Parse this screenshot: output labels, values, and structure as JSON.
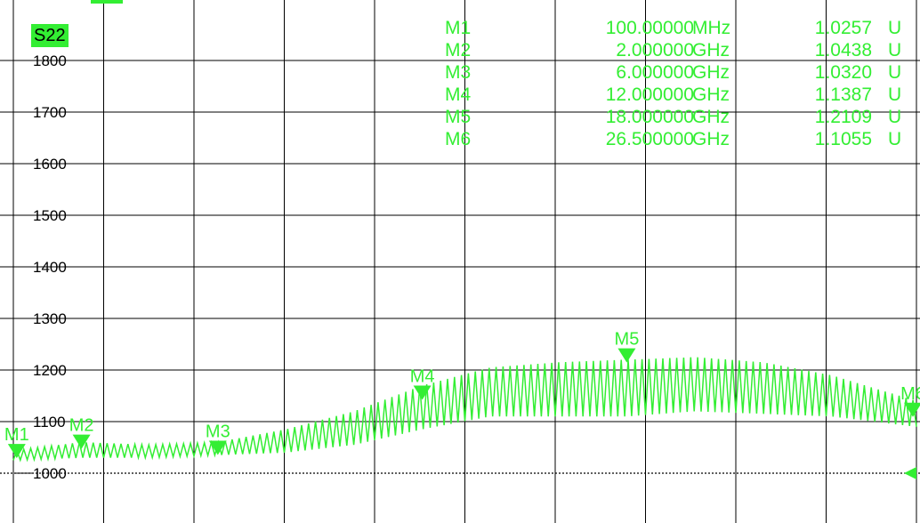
{
  "trace": {
    "label": "S22"
  },
  "marker_table": [
    {
      "name": "M1",
      "freq": "100.00000",
      "unit": "MHz",
      "value": "1.0257",
      "vunit": "U"
    },
    {
      "name": "M2",
      "freq": "2.000000",
      "unit": "GHz",
      "value": "1.0438",
      "vunit": "U"
    },
    {
      "name": "M3",
      "freq": "6.000000",
      "unit": "GHz",
      "value": "1.0320",
      "vunit": "U"
    },
    {
      "name": "M4",
      "freq": "12.000000",
      "unit": "GHz",
      "value": "1.1387",
      "vunit": "U"
    },
    {
      "name": "M5",
      "freq": "18.000000",
      "unit": "GHz",
      "value": "1.2109",
      "vunit": "U"
    },
    {
      "name": "M6",
      "freq": "26.500000",
      "unit": "GHz",
      "value": "1.1055",
      "vunit": "U"
    }
  ],
  "chart_data": {
    "type": "line",
    "title": "",
    "xlabel": "",
    "ylabel": "",
    "y_tick_labels": [
      "1800",
      "1700",
      "1600",
      "1500",
      "1400",
      "1300",
      "1200",
      "1100",
      "1000"
    ],
    "y_tick_values": [
      1.8,
      1.7,
      1.6,
      1.5,
      1.4,
      1.3,
      1.2,
      1.1,
      1.0
    ],
    "ylim": [
      0.91,
      1.87
    ],
    "xlim_ghz": [
      0,
      26.5
    ],
    "reference_level": 1.0,
    "grid": true,
    "trace_color": "#33ee33",
    "series": [
      {
        "x_ghz": [
          0.1,
          2,
          4,
          6,
          8,
          10,
          12,
          14,
          16,
          18,
          20,
          22,
          24,
          26.5
        ],
        "envelope_low": [
          1.025,
          1.03,
          1.03,
          1.035,
          1.04,
          1.055,
          1.085,
          1.11,
          1.11,
          1.11,
          1.12,
          1.115,
          1.11,
          1.09
        ],
        "envelope_high": [
          1.045,
          1.06,
          1.055,
          1.06,
          1.085,
          1.12,
          1.17,
          1.205,
          1.215,
          1.22,
          1.225,
          1.215,
          1.19,
          1.14
        ]
      }
    ],
    "markers": [
      {
        "name": "M1",
        "x_ghz": 0.1,
        "y": 1.0257
      },
      {
        "name": "M2",
        "x_ghz": 2.0,
        "y": 1.0438
      },
      {
        "name": "M3",
        "x_ghz": 6.0,
        "y": 1.032
      },
      {
        "name": "M4",
        "x_ghz": 12.0,
        "y": 1.1387
      },
      {
        "name": "M5",
        "x_ghz": 18.0,
        "y": 1.2109
      },
      {
        "name": "M6",
        "x_ghz": 26.5,
        "y": 1.1055
      }
    ]
  }
}
